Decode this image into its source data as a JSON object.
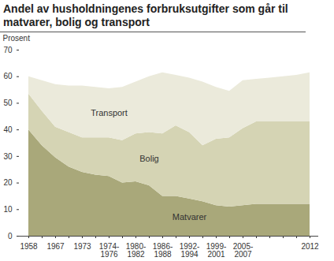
{
  "chart_data": {
    "type": "area",
    "title": "Andel av husholdningenes forbruksutgifter som går til matvarer, bolig og transport",
    "ylabel": "Prosent",
    "stacked": true,
    "categories": [
      "1958",
      null,
      "1967",
      null,
      "1973",
      null,
      "1974-1976",
      null,
      "1980-1982",
      null,
      "1986-1988",
      null,
      "1992-1994",
      null,
      "1999-2001",
      null,
      "2005-2007",
      null,
      null,
      null,
      null,
      "2012"
    ],
    "series": [
      {
        "name": "Matvarer",
        "color": "#a9a87a",
        "values": [
          40,
          34,
          29.5,
          26,
          24,
          23,
          22.5,
          20,
          20.5,
          19,
          15,
          15,
          14,
          13,
          11.5,
          11,
          11.5,
          12,
          12,
          12,
          12,
          12
        ]
      },
      {
        "name": "Bolig",
        "color": "#d5d4b4",
        "values": [
          13.5,
          13,
          11.5,
          13,
          13,
          14,
          14.5,
          16,
          18,
          20,
          23.5,
          26.5,
          25,
          21,
          25,
          26,
          29,
          31,
          31,
          31,
          31,
          31
        ]
      },
      {
        "name": "Transport",
        "color": "#ebeadb",
        "values": [
          6.5,
          11.5,
          16,
          17.5,
          19.5,
          19,
          18.5,
          20,
          19.5,
          21,
          23,
          19,
          20.5,
          24,
          19.5,
          17.5,
          18,
          16,
          16.5,
          17,
          17.5,
          18.5
        ]
      }
    ],
    "ylim": [
      0,
      70
    ],
    "yticks": [
      0,
      10,
      20,
      30,
      40,
      50,
      60,
      70
    ]
  }
}
